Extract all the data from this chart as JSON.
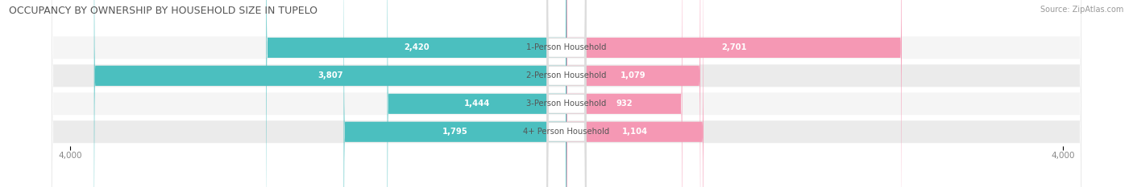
{
  "title": "OCCUPANCY BY OWNERSHIP BY HOUSEHOLD SIZE IN TUPELO",
  "source": "Source: ZipAtlas.com",
  "categories": [
    "1-Person Household",
    "2-Person Household",
    "3-Person Household",
    "4+ Person Household"
  ],
  "owner_values": [
    2420,
    3807,
    1444,
    1795
  ],
  "renter_values": [
    2701,
    1079,
    932,
    1104
  ],
  "max_scale": 4000,
  "owner_color": "#4BBFBF",
  "renter_color": "#F598B4",
  "row_bg_light": "#F5F5F5",
  "row_bg_dark": "#EBEBEB",
  "title_fontsize": 9,
  "label_fontsize": 7.2,
  "tick_fontsize": 7.5,
  "source_fontsize": 7,
  "legend_fontsize": 7.5,
  "value_text_color_white": "#FFFFFF",
  "value_text_color_dark": "#888888",
  "background_color": "#FFFFFF"
}
